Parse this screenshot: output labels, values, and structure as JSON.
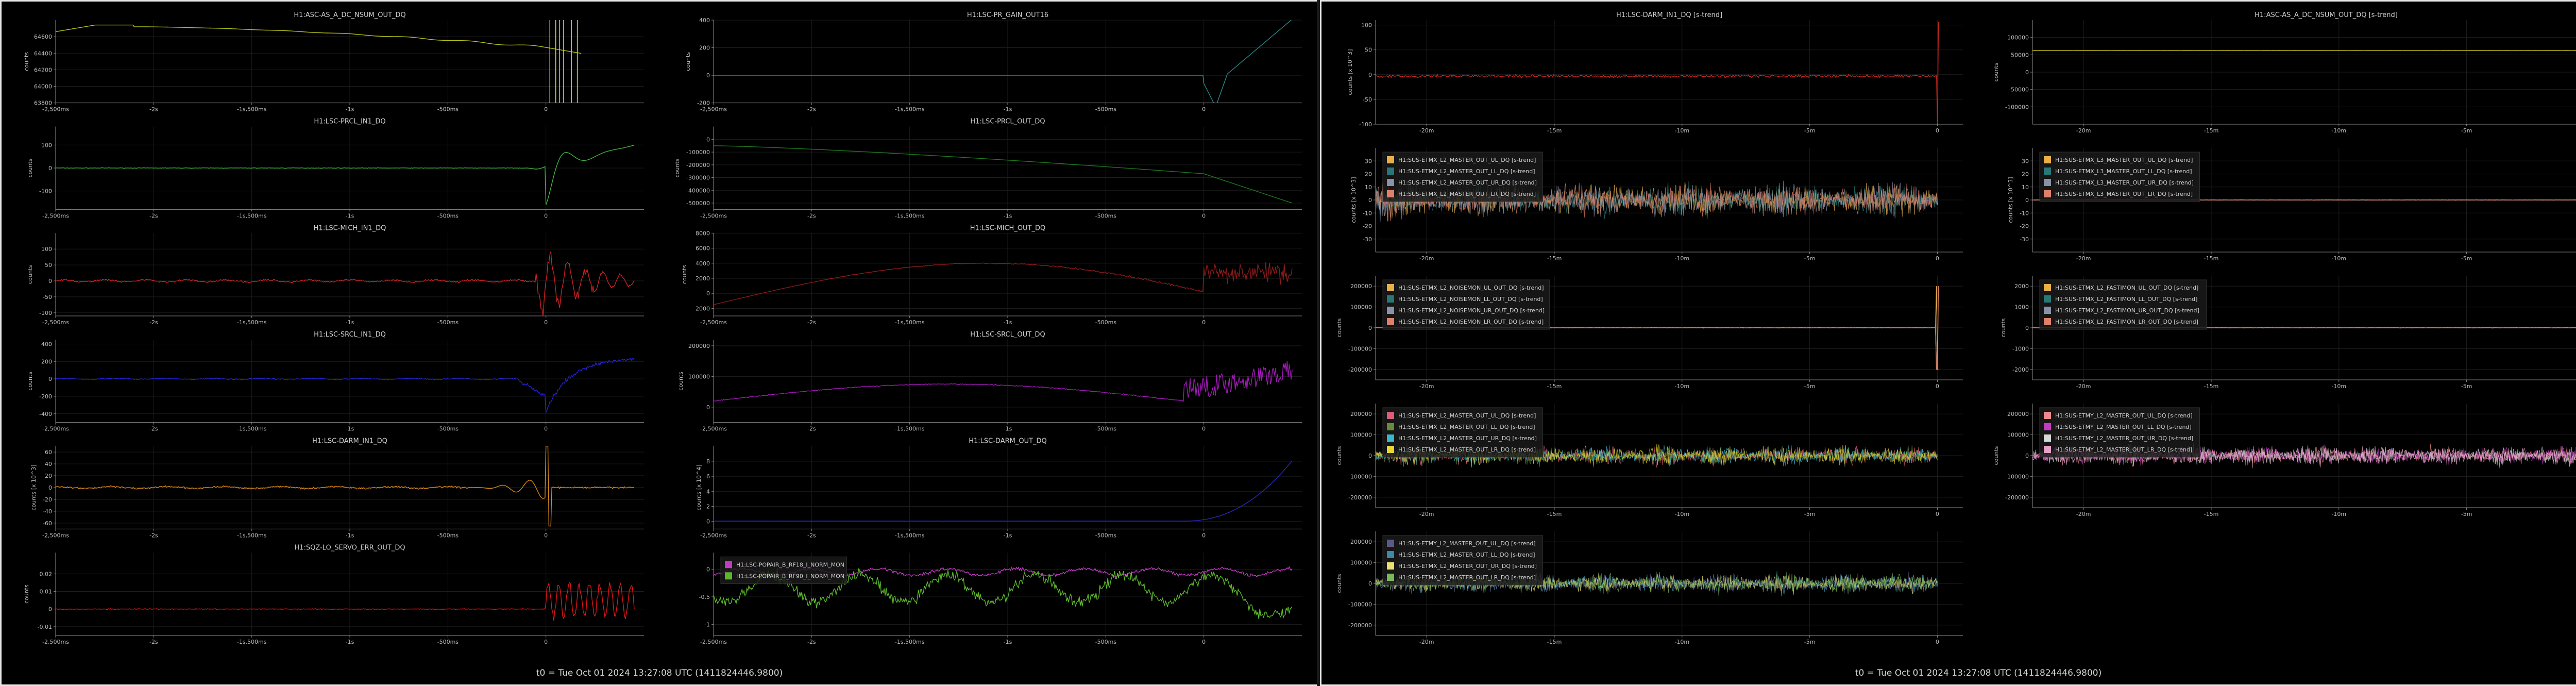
{
  "windows": [
    {
      "footer": "t0 = Tue Oct 01 2024 13:27:08 UTC (1411824446.9800)"
    },
    {
      "footer": "t0 = Tue Oct 01 2024 13:27:08 UTC (1411824446.9800)"
    }
  ],
  "chart_data": [
    {
      "win": 0,
      "col": 0,
      "row": 0,
      "type": "line",
      "title": "H1:ASC-AS_A_DC_NSUM_OUT_DQ",
      "ylabel": "counts",
      "ylim": [
        63800,
        64800
      ],
      "yticks": [
        64600,
        64400,
        64200,
        64000,
        63800
      ],
      "xlim": [
        -2.5,
        0.5
      ],
      "xticks": [
        -2.5,
        -2,
        -1.5,
        -1,
        -0.5,
        0
      ],
      "xticklabels": [
        "-2,500ms",
        "-2s",
        "-1s,500ms",
        "-1s",
        "-500ms",
        "0"
      ],
      "series": [
        {
          "color": "#b8c21a",
          "shape": "asc_nsum"
        }
      ],
      "spikes": {
        "color": "#d8dc20",
        "at": [
          0.02,
          0.05,
          0.07,
          0.09,
          0.13,
          0.16
        ]
      }
    },
    {
      "win": 0,
      "col": 1,
      "row": 0,
      "type": "line",
      "title": "H1:LSC-PR_GAIN_OUT16",
      "ylabel": "counts",
      "ylim": [
        -200,
        400
      ],
      "yticks": [
        400,
        200,
        0,
        -200
      ],
      "xlim": [
        -2.5,
        0.5
      ],
      "xticks": [
        -2.5,
        -2,
        -1.5,
        -1,
        -0.5,
        0
      ],
      "xticklabels": [
        "-2,500ms",
        "-2s",
        "-1s,500ms",
        "-1s",
        "-500ms",
        "0"
      ],
      "series": [
        {
          "color": "#2a8a8a",
          "shape": "pr_gain"
        }
      ]
    },
    {
      "win": 0,
      "col": 0,
      "row": 1,
      "type": "line",
      "title": "H1:LSC-PRCL_IN1_DQ",
      "ylabel": "counts",
      "ylim": [
        -180,
        180
      ],
      "yticks": [
        100,
        0,
        -100
      ],
      "xlim": [
        -2.5,
        0.5
      ],
      "xticks": [
        -2.5,
        -2,
        -1.5,
        -1,
        -0.5,
        0
      ],
      "xticklabels": [
        "-2,500ms",
        "-2s",
        "-1s,500ms",
        "-1s",
        "-500ms",
        "0"
      ],
      "series": [
        {
          "color": "#3db83d",
          "shape": "prcl_in"
        }
      ]
    },
    {
      "win": 0,
      "col": 1,
      "row": 1,
      "type": "line",
      "title": "H1:LSC-PRCL_OUT_DQ",
      "ylabel": "counts",
      "ylim": [
        -550000,
        100000
      ],
      "yticks": [
        0,
        -100000,
        -200000,
        -300000,
        -400000,
        -500000
      ],
      "xlim": [
        -2.5,
        0.5
      ],
      "xticks": [
        -2.5,
        -2,
        -1.5,
        -1,
        -0.5,
        0
      ],
      "xticklabels": [
        "-2,500ms",
        "-2s",
        "-1s,500ms",
        "-1s",
        "-500ms",
        "0"
      ],
      "series": [
        {
          "color": "#1d7a1d",
          "shape": "prcl_out"
        }
      ]
    },
    {
      "win": 0,
      "col": 0,
      "row": 2,
      "type": "line",
      "title": "H1:LSC-MICH_IN1_DQ",
      "ylabel": "counts",
      "ylim": [
        -110,
        150
      ],
      "yticks": [
        100,
        50,
        0,
        -50,
        -100
      ],
      "xlim": [
        -2.5,
        0.5
      ],
      "xticks": [
        -2.5,
        -2,
        -1.5,
        -1,
        -0.5,
        0
      ],
      "xticklabels": [
        "-2,500ms",
        "-2s",
        "-1s,500ms",
        "-1s",
        "-500ms",
        "0"
      ],
      "series": [
        {
          "color": "#d42020",
          "shape": "mich_in"
        }
      ]
    },
    {
      "win": 0,
      "col": 1,
      "row": 2,
      "type": "line",
      "title": "H1:LSC-MICH_OUT_DQ",
      "ylabel": "counts",
      "ylim": [
        -3000,
        8000
      ],
      "yticks": [
        8000,
        6000,
        4000,
        2000,
        0,
        -2000
      ],
      "xlim": [
        -2.5,
        0.5
      ],
      "xticks": [
        -2.5,
        -2,
        -1.5,
        -1,
        -0.5,
        0
      ],
      "xticklabels": [
        "-2,500ms",
        "-2s",
        "-1s,500ms",
        "-1s",
        "-500ms",
        "0"
      ],
      "series": [
        {
          "color": "#8a1a1a",
          "shape": "mich_out"
        }
      ]
    },
    {
      "win": 0,
      "col": 0,
      "row": 3,
      "type": "line",
      "title": "H1:LSC-SRCL_IN1_DQ",
      "ylabel": "counts",
      "ylim": [
        -500,
        450
      ],
      "yticks": [
        400,
        200,
        0,
        -200,
        -400
      ],
      "xlim": [
        -2.5,
        0.5
      ],
      "xticks": [
        -2.5,
        -2,
        -1.5,
        -1,
        -0.5,
        0
      ],
      "xticklabels": [
        "-2,500ms",
        "-2s",
        "-1s,500ms",
        "-1s",
        "-500ms",
        "0"
      ],
      "series": [
        {
          "color": "#2424d8",
          "shape": "srcl_in"
        }
      ]
    },
    {
      "win": 0,
      "col": 1,
      "row": 3,
      "type": "line",
      "title": "H1:LSC-SRCL_OUT_DQ",
      "ylabel": "counts",
      "ylim": [
        -50000,
        220000
      ],
      "yticks": [
        200000,
        100000,
        0
      ],
      "xlim": [
        -2.5,
        0.5
      ],
      "xticks": [
        -2.5,
        -2,
        -1.5,
        -1,
        -0.5,
        0
      ],
      "xticklabels": [
        "-2,500ms",
        "-2s",
        "-1s,500ms",
        "-1s",
        "-500ms",
        "0"
      ],
      "series": [
        {
          "color": "#a21ab8",
          "shape": "srcl_out"
        }
      ]
    },
    {
      "win": 0,
      "col": 0,
      "row": 4,
      "type": "line",
      "title": "H1:LSC-DARM_IN1_DQ",
      "ylabel": "counts [x 10^3]",
      "ylim": [
        -70,
        70
      ],
      "yticks": [
        60,
        40,
        20,
        0,
        -20,
        -40,
        -60
      ],
      "xlim": [
        -2.5,
        0.5
      ],
      "xticks": [
        -2.5,
        -2,
        -1.5,
        -1,
        -0.5,
        0
      ],
      "xticklabels": [
        "-2,500ms",
        "-2s",
        "-1s,500ms",
        "-1s",
        "-500ms",
        "0"
      ],
      "series": [
        {
          "color": "#d88a1a",
          "shape": "darm_in"
        }
      ]
    },
    {
      "win": 0,
      "col": 1,
      "row": 4,
      "type": "line",
      "title": "H1:LSC-DARM_OUT_DQ",
      "ylabel": "counts [x 10^4]",
      "ylim": [
        -1,
        10
      ],
      "yticks": [
        8,
        6,
        4,
        2,
        0
      ],
      "xlim": [
        -2.5,
        0.5
      ],
      "xticks": [
        -2.5,
        -2,
        -1.5,
        -1,
        -0.5,
        0
      ],
      "xticklabels": [
        "-2,500ms",
        "-2s",
        "-1s,500ms",
        "-1s",
        "-500ms",
        "0"
      ],
      "series": [
        {
          "color": "#2a2ab8",
          "shape": "darm_out"
        }
      ]
    },
    {
      "win": 0,
      "col": 0,
      "row": 5,
      "type": "line",
      "title": "H1:SQZ-LO_SERVO_ERR_OUT_DQ",
      "ylabel": "counts",
      "ylim": [
        -0.015,
        0.032
      ],
      "yticks": [
        0.02,
        0.01,
        0,
        -0.01
      ],
      "xlim": [
        -2.5,
        0.5
      ],
      "xticks": [
        -2.5,
        -2,
        -1.5,
        -1,
        -0.5,
        0
      ],
      "xticklabels": [
        "-2,500ms",
        "-2s",
        "-1s,500ms",
        "-1s",
        "-500ms",
        "0"
      ],
      "series": [
        {
          "color": "#e01818",
          "shape": "sqz"
        }
      ]
    },
    {
      "win": 0,
      "col": 1,
      "row": 5,
      "type": "line",
      "title": "",
      "ylabel": "",
      "ylim": [
        -1.2,
        0.3
      ],
      "yticks": [
        0,
        -0.5,
        -1
      ],
      "xlim": [
        -2.5,
        0.5
      ],
      "xticks": [
        -2.5,
        -2,
        -1.5,
        -1,
        -0.5,
        0
      ],
      "xticklabels": [
        "-2,500ms",
        "-2s",
        "-1s,500ms",
        "-1s",
        "-500ms",
        "0"
      ],
      "legend": [
        "H1:LSC-POPAIR_B_RF18_I_NORM_MON",
        "H1:LSC-POPAIR_B_RF90_I_NORM_MON"
      ],
      "series": [
        {
          "name": "H1:LSC-POPAIR_B_RF18_I_NORM_MON",
          "color": "#c23cc2",
          "shape": "pop18"
        },
        {
          "name": "H1:LSC-POPAIR_B_RF90_I_NORM_MON",
          "color": "#5ab82a",
          "shape": "pop90"
        }
      ]
    },
    {
      "win": 1,
      "col": 0,
      "row": 0,
      "type": "line",
      "title": "H1:LSC-DARM_IN1_DQ [s-trend]",
      "ylabel": "counts [x 10^3]",
      "ylim": [
        -100,
        110
      ],
      "yticks": [
        100,
        50,
        0,
        -50,
        -100
      ],
      "xlim": [
        -22,
        1
      ],
      "xticks": [
        -20,
        -15,
        -10,
        -5,
        0
      ],
      "xticklabels": [
        "-20m",
        "-15m",
        "-10m",
        "-5m",
        "0"
      ],
      "series": [
        {
          "color": "#c8281e",
          "shape": "flat_spike"
        }
      ]
    },
    {
      "win": 1,
      "col": 1,
      "row": 0,
      "type": "line",
      "title": "H1:ASC-AS_A_DC_NSUM_OUT_DQ [s-trend]",
      "ylabel": "counts",
      "ylim": [
        -150000,
        150000
      ],
      "yticks": [
        100000,
        50000,
        0,
        -50000,
        -100000
      ],
      "xlim": [
        -22,
        1
      ],
      "xticks": [
        -20,
        -15,
        -10,
        -5,
        0
      ],
      "xticklabels": [
        "-20m",
        "-15m",
        "-10m",
        "-5m",
        "0"
      ],
      "series": [
        {
          "color": "#c8c41a",
          "shape": "step_drop"
        }
      ]
    },
    {
      "win": 1,
      "col": 0,
      "row": 1,
      "type": "line",
      "title": "",
      "ylabel": "counts [x 10^3]",
      "ylim": [
        -40,
        40
      ],
      "yticks": [
        30,
        20,
        10,
        0,
        -10,
        -20,
        -30
      ],
      "xlim": [
        -22,
        1
      ],
      "xticks": [
        -20,
        -15,
        -10,
        -5,
        0
      ],
      "xticklabels": [
        "-20m",
        "-15m",
        "-10m",
        "-5m",
        "0"
      ],
      "legend": [
        "H1:SUS-ETMX_L2_MASTER_OUT_UL_DQ [s-trend]",
        "H1:SUS-ETMX_L2_MASTER_OUT_LL_DQ [s-trend]",
        "H1:SUS-ETMX_L2_MASTER_OUT_UR_DQ [s-trend]",
        "H1:SUS-ETMX_L2_MASTER_OUT_LR_DQ [s-trend]"
      ],
      "series": [
        {
          "name": "H1:SUS-ETMX_L2_MASTER_OUT_UL_DQ [s-trend]",
          "color": "#e8b048",
          "shape": "noise"
        },
        {
          "name": "H1:SUS-ETMX_L2_MASTER_OUT_LL_DQ [s-trend]",
          "color": "#287878",
          "shape": "noise"
        },
        {
          "name": "H1:SUS-ETMX_L2_MASTER_OUT_UR_DQ [s-trend]",
          "color": "#8a92a8",
          "shape": "noise"
        },
        {
          "name": "H1:SUS-ETMX_L2_MASTER_OUT_LR_DQ [s-trend]",
          "color": "#e0806a",
          "shape": "noise"
        }
      ]
    },
    {
      "win": 1,
      "col": 1,
      "row": 1,
      "type": "line",
      "title": "",
      "ylabel": "counts [x 10^3]",
      "ylim": [
        -40,
        40
      ],
      "yticks": [
        30,
        20,
        10,
        0,
        -10,
        -20,
        -30
      ],
      "xlim": [
        -22,
        1
      ],
      "xticks": [
        -20,
        -15,
        -10,
        -5,
        0
      ],
      "xticklabels": [
        "-20m",
        "-15m",
        "-10m",
        "-5m",
        "0"
      ],
      "legend": [
        "H1:SUS-ETMX_L3_MASTER_OUT_UL_DQ [s-trend]",
        "H1:SUS-ETMX_L3_MASTER_OUT_LL_DQ [s-trend]",
        "H1:SUS-ETMX_L3_MASTER_OUT_UR_DQ [s-trend]",
        "H1:SUS-ETMX_L3_MASTER_OUT_LR_DQ [s-trend]"
      ],
      "series": [
        {
          "name": "H1:SUS-ETMX_L3_MASTER_OUT_UL_DQ [s-trend]",
          "color": "#e8b048",
          "shape": "flat_spike_small"
        },
        {
          "name": "H1:SUS-ETMX_L3_MASTER_OUT_LL_DQ [s-trend]",
          "color": "#287878",
          "shape": "flat_spike_small"
        },
        {
          "name": "H1:SUS-ETMX_L3_MASTER_OUT_UR_DQ [s-trend]",
          "color": "#8a92a8",
          "shape": "flat_spike_small"
        },
        {
          "name": "H1:SUS-ETMX_L3_MASTER_OUT_LR_DQ [s-trend]",
          "color": "#e0806a",
          "shape": "flat_spike_small"
        }
      ]
    },
    {
      "win": 1,
      "col": 0,
      "row": 2,
      "type": "line",
      "title": "",
      "ylabel": "counts",
      "ylim": [
        -250000,
        250000
      ],
      "yticks": [
        200000,
        100000,
        0,
        -100000,
        -200000
      ],
      "xlim": [
        -22,
        1
      ],
      "xticks": [
        -20,
        -15,
        -10,
        -5,
        0
      ],
      "xticklabels": [
        "-20m",
        "-15m",
        "-10m",
        "-5m",
        "0"
      ],
      "legend": [
        "H1:SUS-ETMX_L2_NOISEMON_UL_OUT_DQ [s-trend]",
        "H1:SUS-ETMX_L2_NOISEMON_LL_OUT_DQ [s-trend]",
        "H1:SUS-ETMX_L2_NOISEMON_UR_OUT_DQ [s-trend]",
        "H1:SUS-ETMX_L2_NOISEMON_LR_OUT_DQ [s-trend]"
      ],
      "series": [
        {
          "name": "H1:SUS-ETMX_L2_NOISEMON_UL_OUT_DQ [s-trend]",
          "color": "#e8b048",
          "shape": "flat_spike_small"
        },
        {
          "name": "H1:SUS-ETMX_L2_NOISEMON_LL_OUT_DQ [s-trend]",
          "color": "#287878",
          "shape": "flat_spike_small"
        },
        {
          "name": "H1:SUS-ETMX_L2_NOISEMON_UR_OUT_DQ [s-trend]",
          "color": "#8a92a8",
          "shape": "flat_spike_small"
        },
        {
          "name": "H1:SUS-ETMX_L2_NOISEMON_LR_OUT_DQ [s-trend]",
          "color": "#e0806a",
          "shape": "flat_spike_small"
        }
      ]
    },
    {
      "win": 1,
      "col": 1,
      "row": 2,
      "type": "line",
      "title": "",
      "ylabel": "counts",
      "ylim": [
        -2500,
        2500
      ],
      "yticks": [
        2000,
        1000,
        0,
        -1000,
        -2000
      ],
      "xlim": [
        -22,
        1
      ],
      "xticks": [
        -20,
        -15,
        -10,
        -5,
        0
      ],
      "xticklabels": [
        "-20m",
        "-15m",
        "-10m",
        "-5m",
        "0"
      ],
      "legend": [
        "H1:SUS-ETMX_L2_FASTIMON_UL_OUT_DQ [s-trend]",
        "H1:SUS-ETMX_L2_FASTIMON_LL_OUT_DQ [s-trend]",
        "H1:SUS-ETMX_L2_FASTIMON_UR_OUT_DQ [s-trend]",
        "H1:SUS-ETMX_L2_FASTIMON_LR_OUT_DQ [s-trend]"
      ],
      "series": [
        {
          "name": "H1:SUS-ETMX_L2_FASTIMON_UL_OUT_DQ [s-trend]",
          "color": "#e8b048",
          "shape": "flat_spike_small"
        },
        {
          "name": "H1:SUS-ETMX_L2_FASTIMON_LL_OUT_DQ [s-trend]",
          "color": "#287878",
          "shape": "flat_spike_small"
        },
        {
          "name": "H1:SUS-ETMX_L2_FASTIMON_UR_OUT_DQ [s-trend]",
          "color": "#8a92a8",
          "shape": "flat_spike_small"
        },
        {
          "name": "H1:SUS-ETMX_L2_FASTIMON_LR_OUT_DQ [s-trend]",
          "color": "#e0806a",
          "shape": "flat_spike_small"
        }
      ]
    },
    {
      "win": 1,
      "col": 0,
      "row": 3,
      "type": "line",
      "title": "",
      "ylabel": "counts",
      "ylim": [
        -250000,
        250000
      ],
      "yticks": [
        200000,
        100000,
        0,
        -100000,
        -200000
      ],
      "xlim": [
        -22,
        1
      ],
      "xticks": [
        -20,
        -15,
        -10,
        -5,
        0
      ],
      "xticklabels": [
        "-20m",
        "-15m",
        "-10m",
        "-5m",
        "0"
      ],
      "legend": [
        "H1:SUS-ETMX_L2_MASTER_OUT_UL_DQ [s-trend]",
        "H1:SUS-ETMX_L2_MASTER_OUT_LL_DQ [s-trend]",
        "H1:SUS-ETMX_L2_MASTER_OUT_UR_DQ [s-trend]",
        "H1:SUS-ETMX_L2_MASTER_OUT_LR_DQ [s-trend]"
      ],
      "series": [
        {
          "name": "H1:SUS-ETMX_L2_MASTER_OUT_UL_DQ [s-trend]",
          "color": "#e05a7a",
          "shape": "noise_band"
        },
        {
          "name": "H1:SUS-ETMX_L2_MASTER_OUT_LL_DQ [s-trend]",
          "color": "#6a8a3a",
          "shape": "noise_band"
        },
        {
          "name": "H1:SUS-ETMX_L2_MASTER_OUT_UR_DQ [s-trend]",
          "color": "#3ab8c8",
          "shape": "noise_band"
        },
        {
          "name": "H1:SUS-ETMX_L2_MASTER_OUT_LR_DQ [s-trend]",
          "color": "#e8d830",
          "shape": "noise_band"
        }
      ]
    },
    {
      "win": 1,
      "col": 1,
      "row": 3,
      "type": "line",
      "title": "",
      "ylabel": "counts",
      "ylim": [
        -250000,
        250000
      ],
      "yticks": [
        200000,
        100000,
        0,
        -100000,
        -200000
      ],
      "xlim": [
        -22,
        1
      ],
      "xticks": [
        -20,
        -15,
        -10,
        -5,
        0
      ],
      "xticklabels": [
        "-20m",
        "-15m",
        "-10m",
        "-5m",
        "0"
      ],
      "legend": [
        "H1:SUS-ETMY_L2_MASTER_OUT_UL_DQ [s-trend]",
        "H1:SUS-ETMY_L2_MASTER_OUT_LL_DQ [s-trend]",
        "H1:SUS-ETMY_L2_MASTER_OUT_UR_DQ [s-trend]",
        "H1:SUS-ETMY_L2_MASTER_OUT_LR_DQ [s-trend]"
      ],
      "series": [
        {
          "name": "H1:SUS-ETMY_L2_MASTER_OUT_UL_DQ [s-trend]",
          "color": "#f08a8a",
          "shape": "noise_band"
        },
        {
          "name": "H1:SUS-ETMY_L2_MASTER_OUT_LL_DQ [s-trend]",
          "color": "#c23cc2",
          "shape": "noise_band"
        },
        {
          "name": "H1:SUS-ETMY_L2_MASTER_OUT_UR_DQ [s-trend]",
          "color": "#d8d8d8",
          "shape": "noise_band"
        },
        {
          "name": "H1:SUS-ETMY_L2_MASTER_OUT_LR_DQ [s-trend]",
          "color": "#e8a0c8",
          "shape": "noise_band"
        }
      ]
    },
    {
      "win": 1,
      "col": 0,
      "row": 4,
      "type": "line",
      "title": "",
      "ylabel": "counts",
      "ylim": [
        -250000,
        250000
      ],
      "yticks": [
        200000,
        100000,
        0,
        -100000,
        -200000
      ],
      "xlim": [
        -22,
        1
      ],
      "xticks": [
        -20,
        -15,
        -10,
        -5,
        0
      ],
      "xticklabels": [
        "-20m",
        "-15m",
        "-10m",
        "-5m",
        "0"
      ],
      "legend": [
        "H1:SUS-ETMY_L2_MASTER_OUT_UL_DQ [s-trend]",
        "H1:SUS-ETMX_L2_MASTER_OUT_LL_DQ [s-trend]",
        "H1:SUS-ETMX_L2_MASTER_OUT_UR_DQ [s-trend]",
        "H1:SUS-ETMX_L2_MASTER_OUT_LR_DQ [s-trend]"
      ],
      "series": [
        {
          "name": "H1:SUS-ETMY_L2_MASTER_OUT_UL_DQ [s-trend]",
          "color": "#5a5a8a",
          "shape": "noise_band"
        },
        {
          "name": "H1:SUS-ETMX_L2_MASTER_OUT_LL_DQ [s-trend]",
          "color": "#3a8aa8",
          "shape": "noise_band"
        },
        {
          "name": "H1:SUS-ETMX_L2_MASTER_OUT_UR_DQ [s-trend]",
          "color": "#e8e070",
          "shape": "noise_band"
        },
        {
          "name": "H1:SUS-ETMX_L2_MASTER_OUT_LR_DQ [s-trend]",
          "color": "#7ab85a",
          "shape": "noise_band"
        }
      ]
    }
  ]
}
